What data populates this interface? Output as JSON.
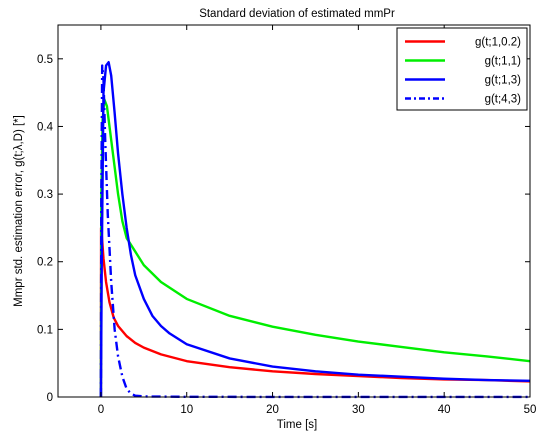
{
  "chart_data": {
    "type": "line",
    "title": "Standard deviation of estimated mmPr",
    "xlabel": "Time [s]",
    "ylabel": "Mmpr std. estimation error, g(t;λ,D) [*]",
    "xlim": [
      -5,
      50
    ],
    "ylim": [
      0,
      0.55
    ],
    "xticks": [
      0,
      10,
      20,
      30,
      40,
      50
    ],
    "yticks": [
      0,
      0.1,
      0.2,
      0.3,
      0.4,
      0.5
    ],
    "xtick_labels": [
      "0",
      "10",
      "20",
      "30",
      "40",
      "50"
    ],
    "ytick_labels": [
      "0",
      "0.1",
      "0.2",
      "0.3",
      "0.4",
      "0.5"
    ],
    "grid": false,
    "legend_position": "top-right",
    "series": [
      {
        "name": "g(t;1,0.2)",
        "color": "#ff0000",
        "dash": "solid",
        "points": [
          [
            0,
            0
          ],
          [
            0.02,
            0.25
          ],
          [
            0.1,
            0.24
          ],
          [
            0.3,
            0.205
          ],
          [
            0.6,
            0.17
          ],
          [
            1,
            0.14
          ],
          [
            1.5,
            0.117
          ],
          [
            2,
            0.105
          ],
          [
            3,
            0.09
          ],
          [
            4,
            0.08
          ],
          [
            5,
            0.073
          ],
          [
            7,
            0.063
          ],
          [
            10,
            0.053
          ],
          [
            15,
            0.044
          ],
          [
            20,
            0.038
          ],
          [
            25,
            0.034
          ],
          [
            30,
            0.031
          ],
          [
            35,
            0.028
          ],
          [
            40,
            0.026
          ],
          [
            45,
            0.025
          ],
          [
            50,
            0.023
          ]
        ]
      },
      {
        "name": "g(t;1,1)",
        "color": "#00ee00",
        "dash": "solid",
        "points": [
          [
            0,
            0
          ],
          [
            0.05,
            0.3
          ],
          [
            0.2,
            0.41
          ],
          [
            0.4,
            0.44
          ],
          [
            0.7,
            0.43
          ],
          [
            1,
            0.4
          ],
          [
            1.5,
            0.35
          ],
          [
            2,
            0.3
          ],
          [
            2.5,
            0.26
          ],
          [
            3,
            0.235
          ],
          [
            4,
            0.215
          ],
          [
            5,
            0.195
          ],
          [
            7,
            0.17
          ],
          [
            10,
            0.145
          ],
          [
            15,
            0.12
          ],
          [
            20,
            0.104
          ],
          [
            25,
            0.092
          ],
          [
            30,
            0.082
          ],
          [
            35,
            0.074
          ],
          [
            40,
            0.066
          ],
          [
            45,
            0.06
          ],
          [
            50,
            0.053
          ]
        ]
      },
      {
        "name": "g(t;1,3)",
        "color": "#0000ff",
        "dash": "solid",
        "points": [
          [
            0,
            0
          ],
          [
            0.1,
            0.2
          ],
          [
            0.3,
            0.45
          ],
          [
            0.6,
            0.49
          ],
          [
            0.9,
            0.495
          ],
          [
            1.2,
            0.475
          ],
          [
            1.6,
            0.42
          ],
          [
            2,
            0.36
          ],
          [
            2.5,
            0.3
          ],
          [
            3,
            0.25
          ],
          [
            3.5,
            0.21
          ],
          [
            4,
            0.18
          ],
          [
            5,
            0.145
          ],
          [
            6,
            0.12
          ],
          [
            7,
            0.105
          ],
          [
            8,
            0.094
          ],
          [
            10,
            0.078
          ],
          [
            15,
            0.057
          ],
          [
            20,
            0.045
          ],
          [
            25,
            0.038
          ],
          [
            30,
            0.033
          ],
          [
            35,
            0.03
          ],
          [
            40,
            0.027
          ],
          [
            45,
            0.025
          ],
          [
            50,
            0.024
          ]
        ]
      },
      {
        "name": "g(t;4,3)",
        "color": "#0000ff",
        "dash": "dashdot",
        "points": [
          [
            0,
            0
          ],
          [
            0.05,
            0.3
          ],
          [
            0.15,
            0.49
          ],
          [
            0.3,
            0.47
          ],
          [
            0.5,
            0.38
          ],
          [
            0.8,
            0.27
          ],
          [
            1.2,
            0.17
          ],
          [
            1.6,
            0.1
          ],
          [
            2,
            0.06
          ],
          [
            2.5,
            0.03
          ],
          [
            3,
            0.012
          ],
          [
            3.5,
            0.005
          ],
          [
            4,
            0.002
          ],
          [
            5,
            0.0008
          ],
          [
            10,
            0.0003
          ],
          [
            20,
            0.0001
          ],
          [
            30,
            0.0001
          ],
          [
            40,
            0.0001
          ],
          [
            50,
            0.0001
          ]
        ]
      }
    ]
  }
}
